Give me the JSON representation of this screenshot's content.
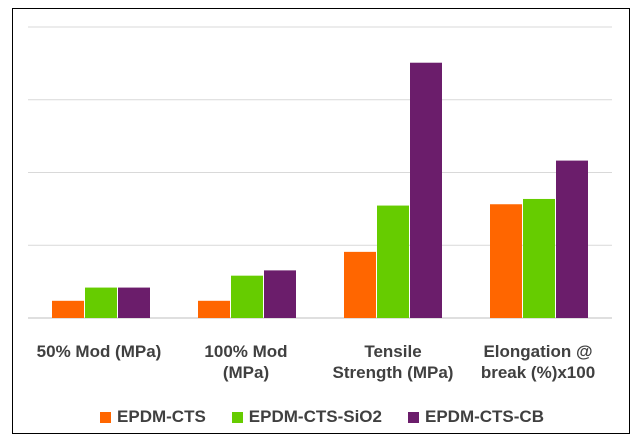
{
  "chart_data": {
    "type": "bar",
    "title": "",
    "xlabel": "",
    "ylabel": "",
    "categories": [
      "50% Mod (MPa)",
      "100% Mod\n(MPa)",
      "Tensile\nStrength (MPa)",
      "Elongation @\nbreak (%)x100"
    ],
    "series": [
      {
        "name": "EPDM-CTS",
        "color": "#FF6600",
        "values": [
          0.26,
          0.26,
          1.0,
          1.72
        ]
      },
      {
        "name": "EPDM-CTS-SiO2",
        "color": "#66CC00",
        "values": [
          0.46,
          0.64,
          1.7,
          1.8
        ]
      },
      {
        "name": "EPDM-CTS-CB",
        "color": "#6B1D6B",
        "values": [
          0.46,
          0.72,
          3.86,
          2.38
        ]
      }
    ],
    "ylim": [
      0,
      4.4
    ],
    "grid": true,
    "legend": "bottom"
  }
}
